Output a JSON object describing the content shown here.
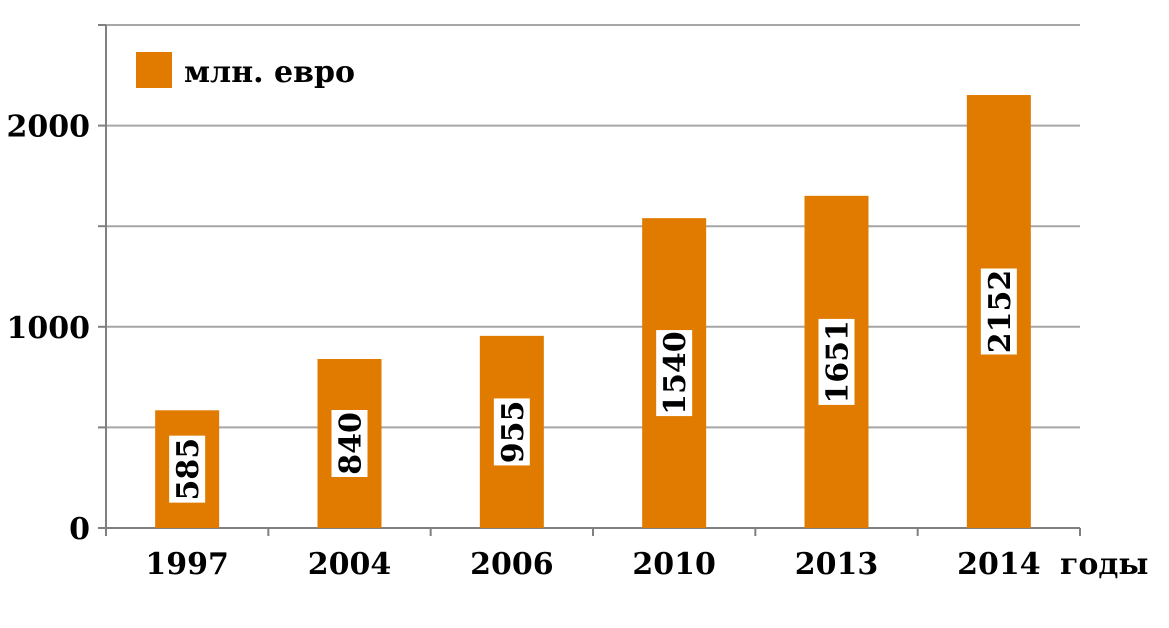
{
  "chart_data": {
    "type": "bar",
    "categories": [
      "1997",
      "2004",
      "2006",
      "2010",
      "2013",
      "2014"
    ],
    "series": [
      {
        "name": "млн. евро",
        "values": [
          585,
          840,
          955,
          1540,
          1651,
          2152
        ],
        "color": "#E07B00"
      }
    ],
    "data_labels": [
      "585",
      "840",
      "955",
      "1540",
      "1651",
      "2152"
    ],
    "title": "",
    "xlabel": "годы",
    "ylabel": "",
    "ylim": [
      0,
      2500
    ],
    "yticks": [
      0,
      1000,
      2000
    ],
    "y_gridlines": [
      500,
      1000,
      1500,
      2000,
      2500
    ],
    "grid": true,
    "legend_position": "top-left"
  },
  "colors": {
    "bar": "#E07B00",
    "grid": "#a6a6a6",
    "axis": "#808080",
    "label_box": "#ffffff"
  }
}
